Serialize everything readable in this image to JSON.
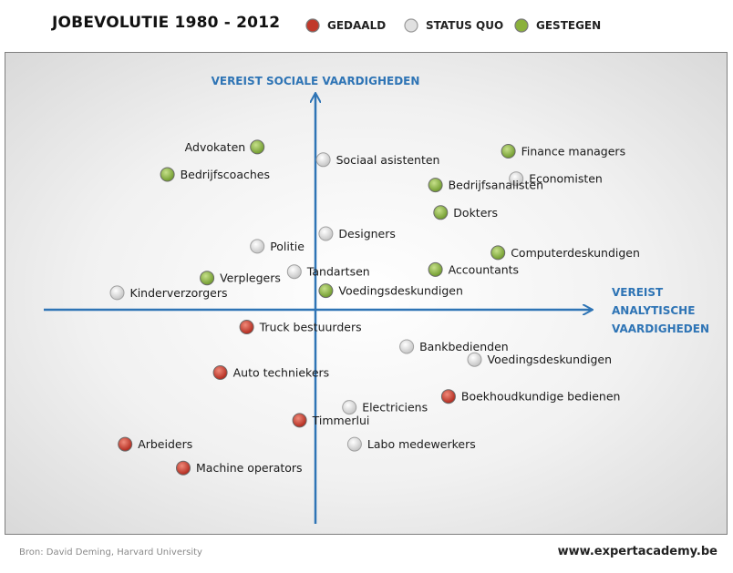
{
  "title": "JOBEVOLUTIE  1980 - 2012",
  "legend": [
    {
      "label": "GEDAALD",
      "status": "gedaald"
    },
    {
      "label": "STATUS QUO",
      "status": "status_quo"
    },
    {
      "label": "GESTEGEN",
      "status": "gestegen"
    }
  ],
  "colors": {
    "gedaald": "#c0392b",
    "status_quo": "#e0e0e0",
    "gestegen": "#8bb13c",
    "axis": "#2e74b5"
  },
  "footer": {
    "source": "Bron: David Deming, Harvard University",
    "site": "www.expertacademy.be"
  },
  "chart_data": {
    "type": "scatter",
    "y_axis_label": "VEREIST SOCIALE VAARDIGHEDEN",
    "x_axis_label": [
      "VEREIST",
      "ANALYTISCHE",
      "VAARDIGHEDEN"
    ],
    "xlim": [
      -10,
      10
    ],
    "ylim": [
      -10,
      10
    ],
    "grid": false,
    "legend_position": "top",
    "points": [
      {
        "name": "Advokaten",
        "x": -2.2,
        "y": 7.7,
        "status": "gestegen",
        "label_side": "left"
      },
      {
        "name": "Bedrijfscoaches",
        "x": -5.6,
        "y": 6.4,
        "status": "gestegen",
        "label_side": "right"
      },
      {
        "name": "Sociaal asistenten",
        "x": 0.3,
        "y": 7.1,
        "status": "status_quo",
        "label_side": "right"
      },
      {
        "name": "Finance managers",
        "x": 7.4,
        "y": 7.5,
        "status": "gestegen",
        "label_side": "right"
      },
      {
        "name": "Economisten",
        "x": 7.7,
        "y": 6.2,
        "status": "status_quo",
        "label_side": "right"
      },
      {
        "name": "Bedrijfsanalisten",
        "x": 4.6,
        "y": 5.9,
        "status": "gestegen",
        "label_side": "right"
      },
      {
        "name": "Dokters",
        "x": 4.8,
        "y": 4.6,
        "status": "gestegen",
        "label_side": "right"
      },
      {
        "name": "Designers",
        "x": 0.4,
        "y": 3.6,
        "status": "status_quo",
        "label_side": "right"
      },
      {
        "name": "Politie",
        "x": -2.2,
        "y": 3.0,
        "status": "status_quo",
        "label_side": "right"
      },
      {
        "name": "Computerdeskundigen",
        "x": 7.0,
        "y": 2.7,
        "status": "gestegen",
        "label_side": "right"
      },
      {
        "name": "Tandartsen",
        "x": -0.8,
        "y": 1.8,
        "status": "status_quo",
        "label_side": "right"
      },
      {
        "name": "Accountants",
        "x": 4.6,
        "y": 1.9,
        "status": "gestegen",
        "label_side": "right"
      },
      {
        "name": "Verplegers",
        "x": -4.1,
        "y": 1.5,
        "status": "gestegen",
        "label_side": "right"
      },
      {
        "name": "Voedingsdeskundigen",
        "x": 0.4,
        "y": 0.9,
        "status": "gestegen",
        "label_side": "right"
      },
      {
        "name": "Kinderverzorgers",
        "x": -7.5,
        "y": 0.8,
        "status": "status_quo",
        "label_side": "right"
      },
      {
        "name": "Truck bestuurders",
        "x": -2.6,
        "y": -0.8,
        "status": "gedaald",
        "label_side": "right"
      },
      {
        "name": "Bankbedienden",
        "x": 3.5,
        "y": -1.7,
        "status": "status_quo",
        "label_side": "right"
      },
      {
        "name": "Voedingsdeskundigen",
        "x": 6.1,
        "y": -2.3,
        "status": "status_quo",
        "label_side": "right"
      },
      {
        "name": "Auto techniekers",
        "x": -3.6,
        "y": -2.9,
        "status": "gedaald",
        "label_side": "right"
      },
      {
        "name": "Boekhoudkundige bedienen",
        "x": 5.1,
        "y": -4.0,
        "status": "gedaald",
        "label_side": "right"
      },
      {
        "name": "Electriciens",
        "x": 1.3,
        "y": -4.5,
        "status": "status_quo",
        "label_side": "right"
      },
      {
        "name": "Timmerlui",
        "x": -0.6,
        "y": -5.1,
        "status": "gedaald",
        "label_side": "right"
      },
      {
        "name": "Arbeiders",
        "x": -7.2,
        "y": -6.2,
        "status": "gedaald",
        "label_side": "right"
      },
      {
        "name": "Labo medewerkers",
        "x": 1.5,
        "y": -6.2,
        "status": "status_quo",
        "label_side": "right"
      },
      {
        "name": "Machine operators",
        "x": -5.0,
        "y": -7.3,
        "status": "gedaald",
        "label_side": "right"
      }
    ]
  }
}
